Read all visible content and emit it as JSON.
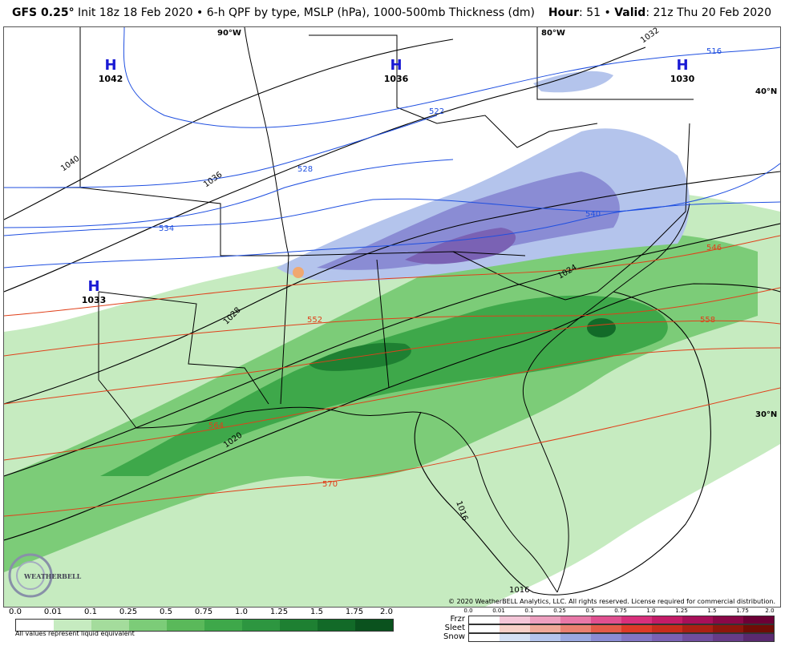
{
  "header": {
    "model": "GFS 0.25",
    "degree": "°",
    "description": " Init 18z 18 Feb 2020 • 6-h QPF by type, MSLP (hPa), 1000-500mb Thickness (dm)",
    "hour_label": "Hour",
    "hour_value": ": 51 • ",
    "valid_label": "Valid",
    "valid_value": ": 21z Thu 20 Feb 2020"
  },
  "map": {
    "highs": [
      {
        "symbol": "H",
        "value": "1042"
      },
      {
        "symbol": "H",
        "value": "1036"
      },
      {
        "symbol": "H",
        "value": "1030"
      },
      {
        "symbol": "H",
        "value": "1033"
      }
    ],
    "longitude_labels": [
      "90°W",
      "80°W"
    ],
    "latitude_labels": [
      "40°N",
      "30°N"
    ],
    "isobar_labels": [
      "1040",
      "1036",
      "1032",
      "1028",
      "1024",
      "1020",
      "1016",
      "1016"
    ],
    "thickness_labels_blue": [
      "516",
      "522",
      "528",
      "534",
      "540"
    ],
    "thickness_labels_red": [
      "546",
      "552",
      "558",
      "564",
      "570"
    ],
    "colors": {
      "isobar": "#000000",
      "thickness_cold": "#1f4fe0",
      "thickness_warm": "#e0401a",
      "high_label": "#1a1ad4"
    }
  },
  "copyright": "© 2020 WeatherBELL Analytics, LLC. All rights reserved. License required for commercial distribution.",
  "logo": {
    "text": "WEATHERBELL"
  },
  "rain_legend": {
    "ticks": [
      "0.0",
      "0.01",
      "0.1",
      "0.25",
      "0.5",
      "0.75",
      "1.0",
      "1.25",
      "1.5",
      "1.75",
      "2.0"
    ],
    "colors": [
      "#ffffff",
      "#c6ebc0",
      "#a4dc9c",
      "#7ccc78",
      "#5ab95a",
      "#3ea84a",
      "#2d9640",
      "#1e8032",
      "#126a28",
      "#0a521e"
    ],
    "note": "All values represent liquid equivalent"
  },
  "ptype_legend": {
    "ticks": [
      "0.0",
      "0.01",
      "0.1",
      "0.25",
      "0.5",
      "0.75",
      "1.0",
      "1.25",
      "1.5",
      "1.75",
      "2.0"
    ],
    "rows": [
      {
        "name": "Frzr",
        "colors": [
          "#ffffff",
          "#f4c6d8",
          "#eea0c0",
          "#e878a8",
          "#e05090",
          "#d8307c",
          "#c41c68",
          "#a8105a",
          "#8a0848",
          "#6c0036"
        ]
      },
      {
        "name": "Sleet",
        "colors": [
          "#ffffff",
          "#f7d0c8",
          "#f0a898",
          "#ea8070",
          "#e45a48",
          "#de3a28",
          "#c82c1c",
          "#ac2014",
          "#8e160c",
          "#700c06"
        ]
      },
      {
        "name": "Snow",
        "colors": [
          "#ffffff",
          "#d4e0f4",
          "#b4c4ec",
          "#9aa8e0",
          "#8a8cd4",
          "#8276c4",
          "#7a62b4",
          "#704e9e",
          "#663c88",
          "#5a2a70"
        ]
      }
    ]
  }
}
